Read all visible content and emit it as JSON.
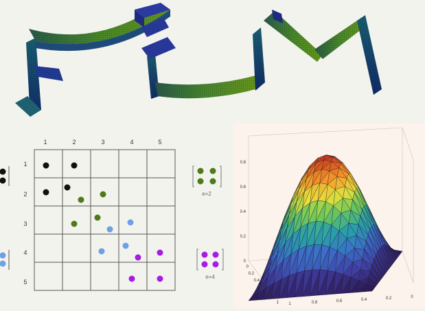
{
  "logo": {
    "letters": [
      "F",
      "E",
      "M"
    ]
  },
  "matrix": {
    "col_labels": [
      "1",
      "2",
      "3",
      "4",
      "5"
    ],
    "row_labels": [
      "1",
      "2",
      "3",
      "4",
      "5"
    ],
    "element_labels": [
      "e=2",
      "e=4"
    ],
    "colors": {
      "e1": "#111111",
      "e2": "#4f7a18",
      "e3": "#6f9fe6",
      "e4": "#a61be6"
    }
  },
  "surface": {
    "z_ticks": [
      "0.8",
      "0.6",
      "0.4",
      "0.2",
      "0"
    ],
    "left_ticks": [
      "0",
      "0.2",
      "0.4",
      "0.6",
      "0.8",
      "1"
    ],
    "front_ticks": [
      "1",
      "0.8",
      "0.6",
      "0.4",
      "0.2",
      "0"
    ]
  }
}
